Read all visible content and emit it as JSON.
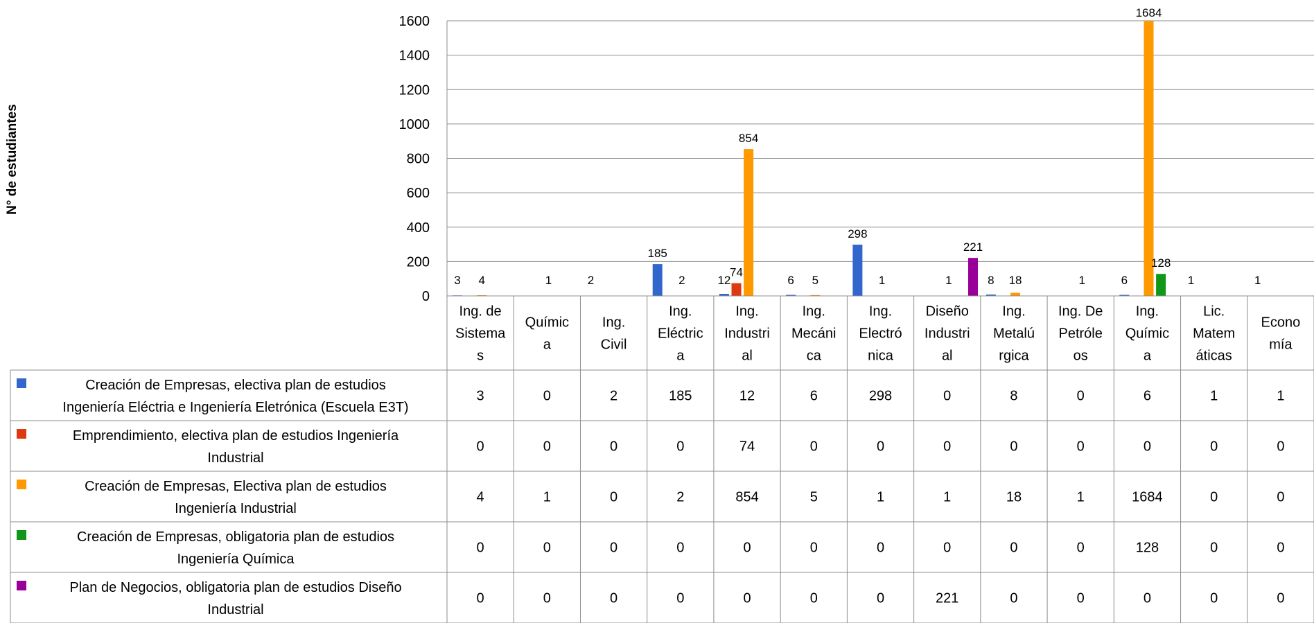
{
  "chart_data": {
    "type": "bar",
    "ylabel": "N° de estudiantes",
    "ylim": [
      0,
      1600
    ],
    "yticks": [
      0,
      200,
      400,
      600,
      800,
      1000,
      1200,
      1400,
      1600
    ],
    "grid": true,
    "legend": "data-table-below",
    "categories": [
      "Ing. de Sistemas",
      "Química",
      "Ing. Civil",
      "Ing. Eléctrica",
      "Ing. Industrial",
      "Ing. Mecánica",
      "Ing. Electrónica",
      "Diseño Industrial",
      "Ing. Metalúrgica",
      "Ing. De Petróleos",
      "Ing. Química",
      "Lic. Matemáticas",
      "Economía"
    ],
    "category_lines": [
      [
        "Ing. de",
        "Sistema",
        "s"
      ],
      [
        "Químic",
        "a"
      ],
      [
        "Ing.",
        "Civil"
      ],
      [
        "Ing.",
        "Eléctric",
        "a"
      ],
      [
        "Ing.",
        "Industri",
        "al"
      ],
      [
        "Ing.",
        "Mecáni",
        "ca"
      ],
      [
        "Ing.",
        "Electró",
        "nica"
      ],
      [
        "Diseño",
        "Industri",
        "al"
      ],
      [
        "Ing.",
        "Metalú",
        "rgica"
      ],
      [
        "Ing. De",
        "Petróle",
        "os"
      ],
      [
        "Ing.",
        "Químic",
        "a"
      ],
      [
        "Lic.",
        "Matem",
        "áticas"
      ],
      [
        "Econo",
        "mía"
      ]
    ],
    "series": [
      {
        "name": "Creación de Empresas, electiva plan de estudios Ingeniería Eléctria e Ingeniería Eletrónica (Escuela E3T)",
        "name_lines": [
          "Creación de Empresas, electiva plan de estudios",
          "Ingeniería Eléctria e Ingeniería Eletrónica (Escuela E3T)"
        ],
        "color": "#3366CC",
        "values": [
          3,
          0,
          2,
          185,
          12,
          6,
          298,
          0,
          8,
          0,
          6,
          1,
          1
        ]
      },
      {
        "name": "Emprendimiento, electiva plan de estudios Ingeniería Industrial",
        "name_lines": [
          "Emprendimiento, electiva plan de estudios Ingeniería",
          "Industrial"
        ],
        "color": "#DC3912",
        "values": [
          0,
          0,
          0,
          0,
          74,
          0,
          0,
          0,
          0,
          0,
          0,
          0,
          0
        ]
      },
      {
        "name": "Creación de Empresas, Electiva plan de estudios Ingeniería Industrial",
        "name_lines": [
          "Creación de Empresas, Electiva plan de estudios",
          "Ingeniería Industrial"
        ],
        "color": "#FF9900",
        "values": [
          4,
          1,
          0,
          2,
          854,
          5,
          1,
          1,
          18,
          1,
          1684,
          0,
          0
        ]
      },
      {
        "name": "Creación de Empresas, obligatoria plan de estudios Ingeniería Química",
        "name_lines": [
          "Creación de Empresas, obligatoria plan de estudios",
          "Ingeniería Química"
        ],
        "color": "#109618",
        "values": [
          0,
          0,
          0,
          0,
          0,
          0,
          0,
          0,
          0,
          0,
          128,
          0,
          0
        ]
      },
      {
        "name": "Plan de Negocios, obligatoria plan de estudios Diseño Industrial",
        "name_lines": [
          "Plan de Negocios, obligatoria plan de estudios Diseño",
          "Industrial"
        ],
        "color": "#990099",
        "values": [
          0,
          0,
          0,
          0,
          0,
          0,
          0,
          221,
          0,
          0,
          0,
          0,
          0
        ]
      }
    ]
  }
}
